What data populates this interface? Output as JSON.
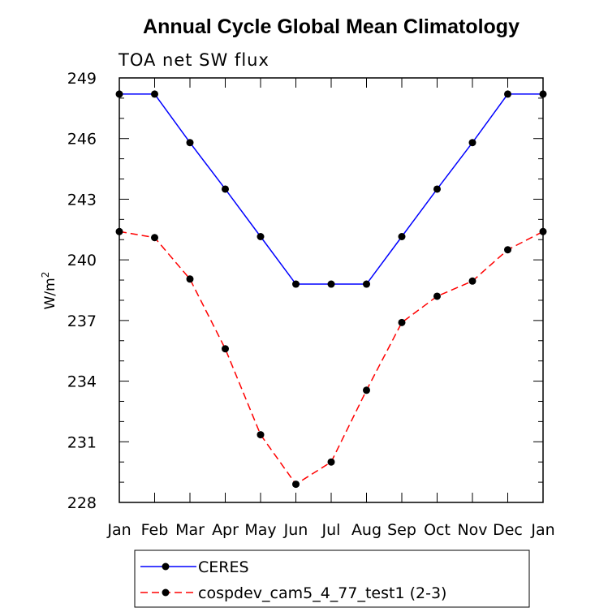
{
  "chart_data": {
    "type": "line",
    "title": "Annual Cycle Global Mean Climatology",
    "subtitle": "TOA net SW flux",
    "xlabel": "",
    "ylabel": "W/m",
    "ylabel_superscript": "2",
    "categories": [
      "Jan",
      "Feb",
      "Mar",
      "Apr",
      "May",
      "Jun",
      "Jul",
      "Aug",
      "Sep",
      "Oct",
      "Nov",
      "Dec",
      "Jan"
    ],
    "ylim": [
      228,
      249
    ],
    "yticks": [
      228,
      231,
      234,
      237,
      240,
      243,
      246,
      249
    ],
    "series": [
      {
        "name": "CERES",
        "color": "#0000ff",
        "dash": "solid",
        "values": [
          248.2,
          248.2,
          245.8,
          243.5,
          241.15,
          238.8,
          238.8,
          238.8,
          241.15,
          243.5,
          245.8,
          248.2,
          248.2
        ]
      },
      {
        "name": "cospdev_cam5_4_77_test1 (2-3)",
        "color": "#ff0000",
        "dash": "dashed",
        "values": [
          241.4,
          241.1,
          239.05,
          235.6,
          231.35,
          228.9,
          230.0,
          233.55,
          236.9,
          238.2,
          238.95,
          240.5,
          241.4
        ]
      }
    ],
    "marker_color": "#000000",
    "legend_position": "bottom-left"
  }
}
